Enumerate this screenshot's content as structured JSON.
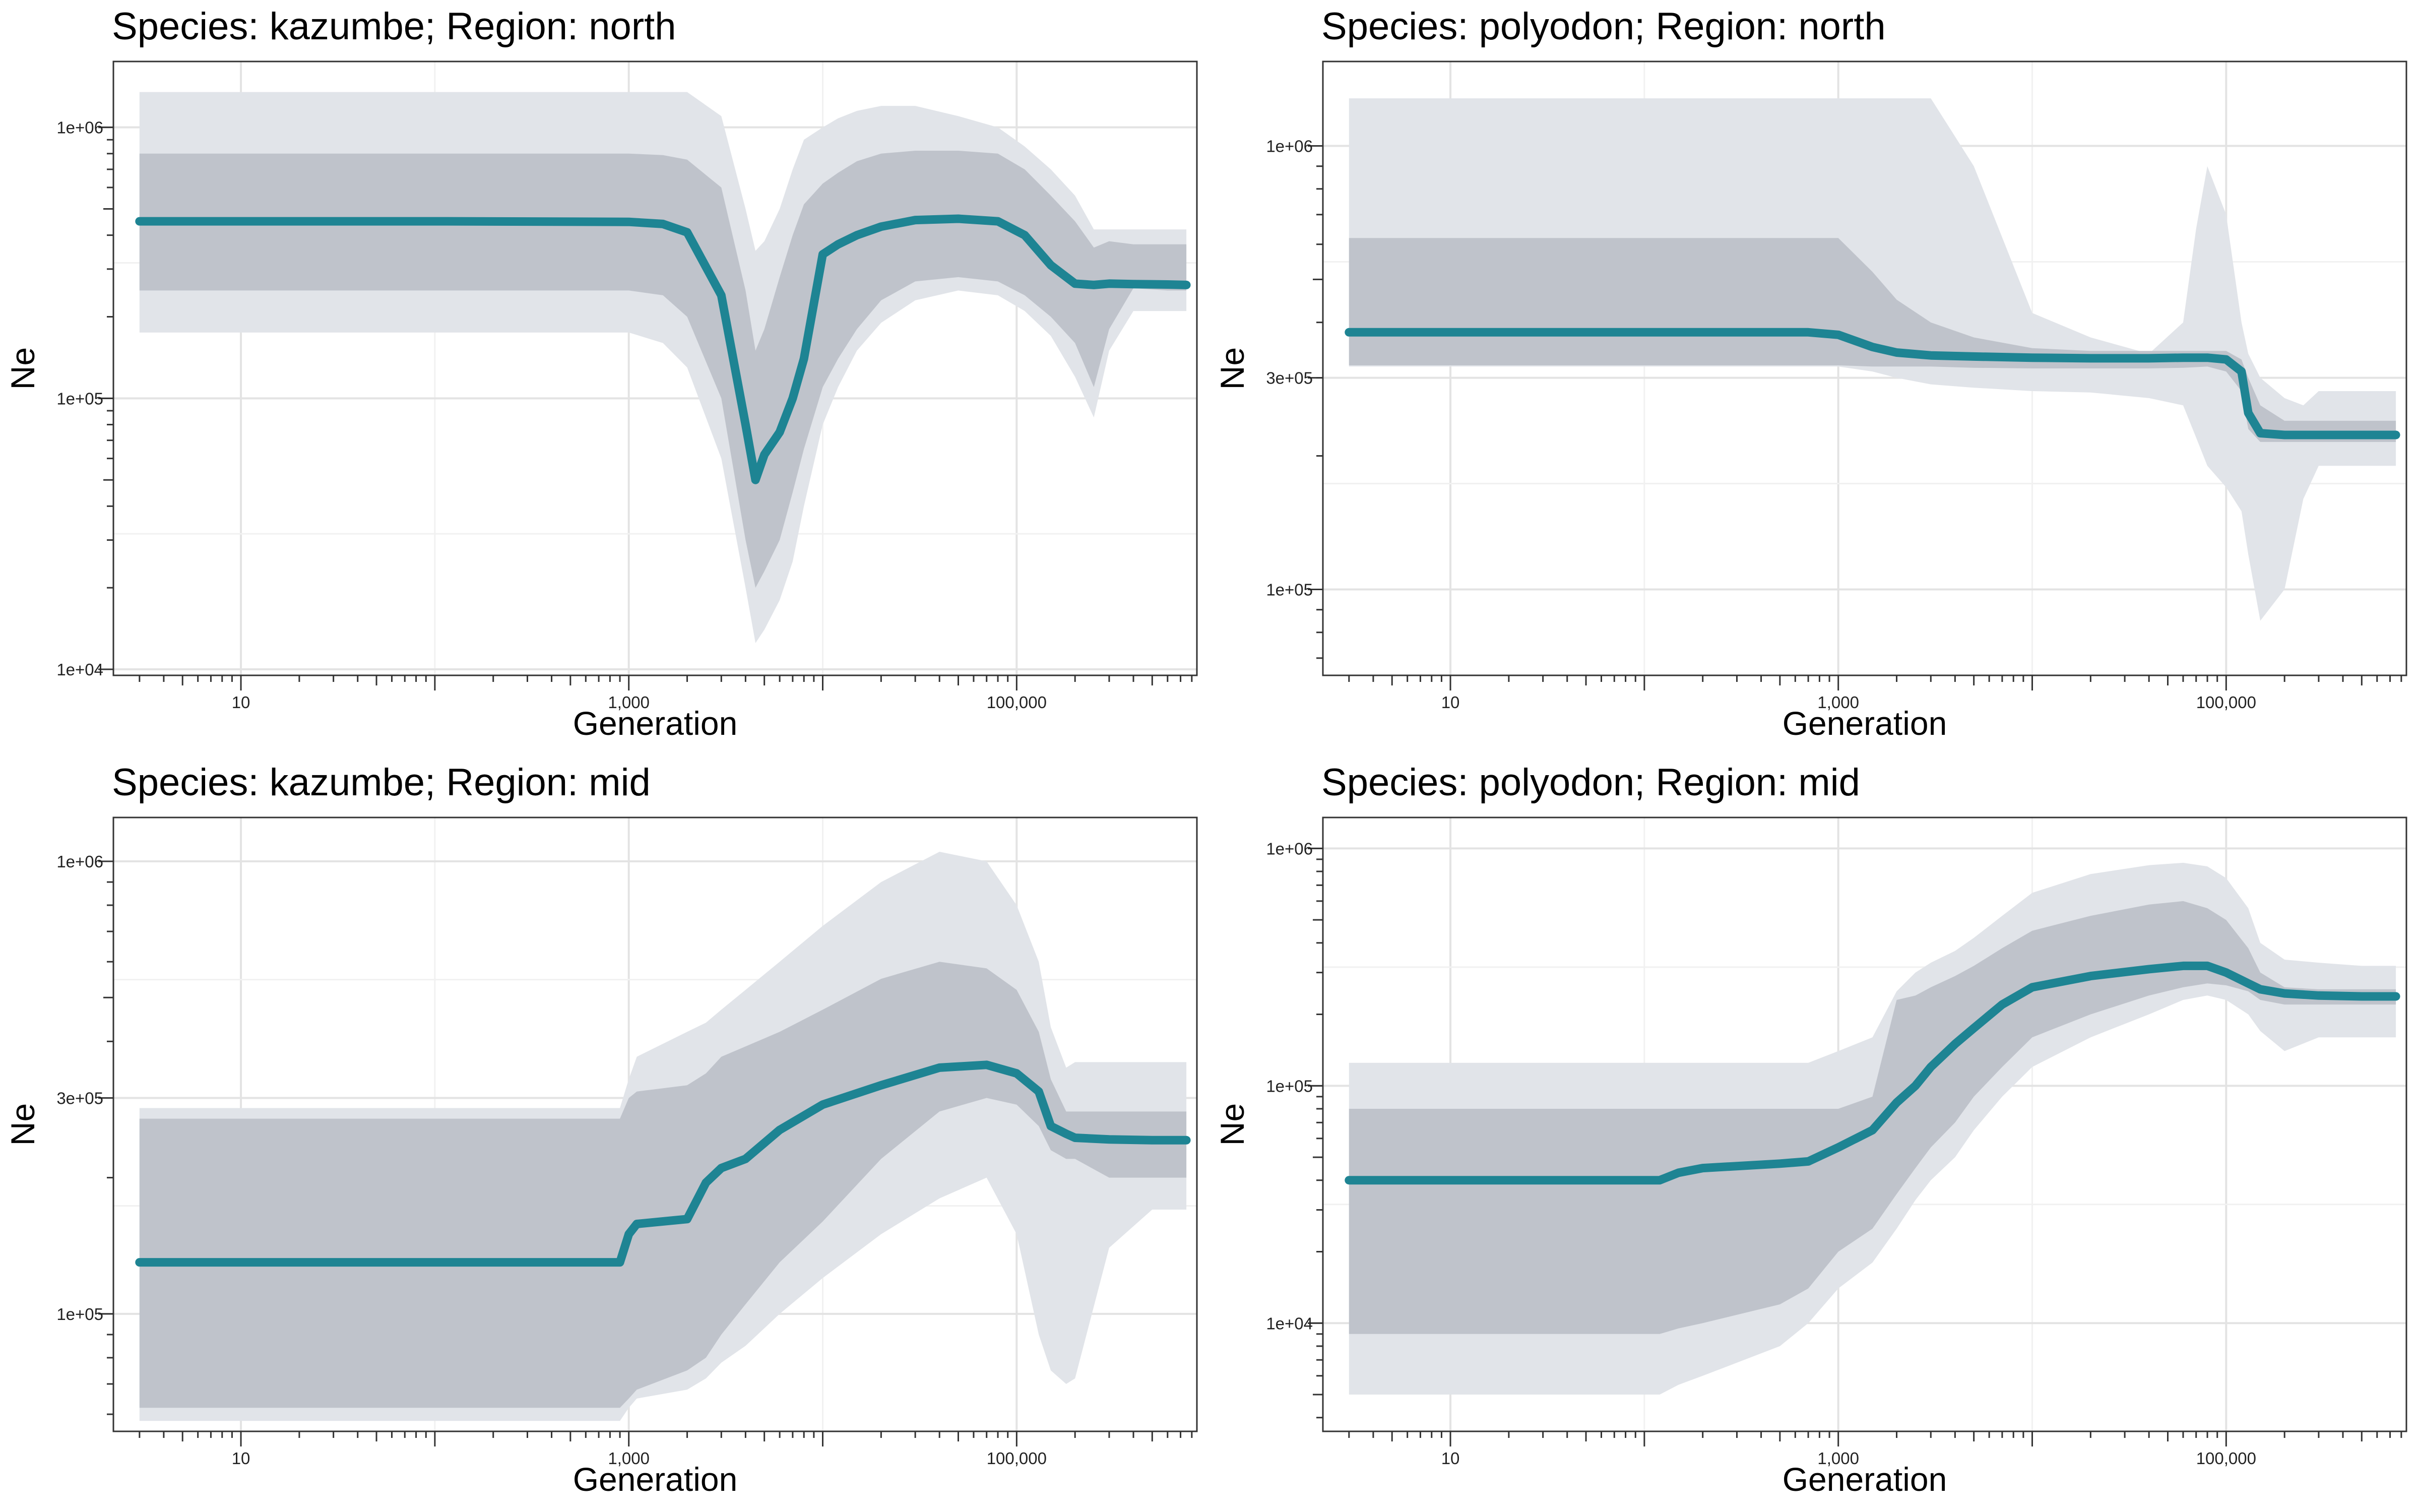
{
  "colors": {
    "line": "#1e8493",
    "inner_band": "#bfc3cb",
    "outer_band": "#e1e4e9",
    "grid_major": "#e3e3e3",
    "grid_minor": "#f1f1f1",
    "border": "#333333"
  },
  "chart_data": [
    {
      "type": "area",
      "title": "Species: kazumbe; Region: north",
      "xlabel": "Generation",
      "ylabel": "Ne",
      "x_scale": "log",
      "y_scale": "log",
      "xlim": [
        2.2,
        850000
      ],
      "ylim": [
        9500,
        1750000
      ],
      "x_ticks": [
        10,
        1000,
        100000
      ],
      "x_tick_labels": [
        "10",
        "1,000",
        "100,000"
      ],
      "y_ticks": [
        10000,
        100000,
        1000000
      ],
      "y_tick_labels": [
        "1e+04",
        "1e+05",
        "1e+06"
      ],
      "grid": true,
      "x": [
        3,
        100,
        1000,
        1500,
        2000,
        3000,
        4000,
        4500,
        5000,
        6000,
        7000,
        8000,
        10000,
        12000,
        15000,
        20000,
        30000,
        50000,
        80000,
        110000,
        150000,
        200000,
        250000,
        300000,
        400000,
        600000,
        750000
      ],
      "median": [
        450000,
        450000,
        448000,
        440000,
        410000,
        240000,
        80000,
        50000,
        62000,
        75000,
        100000,
        140000,
        340000,
        370000,
        400000,
        430000,
        455000,
        460000,
        450000,
        400000,
        310000,
        265000,
        262000,
        265000,
        264000,
        263000,
        262000
      ],
      "inner_lower": [
        250000,
        250000,
        250000,
        240000,
        200000,
        100000,
        30000,
        20000,
        23000,
        30000,
        45000,
        65000,
        110000,
        140000,
        180000,
        230000,
        270000,
        280000,
        270000,
        240000,
        200000,
        160000,
        110000,
        180000,
        255000,
        250000,
        250000
      ],
      "inner_upper": [
        800000,
        800000,
        800000,
        790000,
        760000,
        600000,
        250000,
        150000,
        180000,
        280000,
        400000,
        520000,
        620000,
        680000,
        750000,
        800000,
        820000,
        820000,
        800000,
        700000,
        560000,
        450000,
        360000,
        380000,
        370000,
        370000,
        370000
      ],
      "outer_lower": [
        175000,
        175000,
        175000,
        160000,
        130000,
        60000,
        20000,
        12500,
        14000,
        18000,
        25000,
        40000,
        80000,
        110000,
        150000,
        190000,
        230000,
        250000,
        240000,
        210000,
        170000,
        120000,
        85000,
        150000,
        210000,
        210000,
        210000
      ],
      "outer_upper": [
        1350000,
        1350000,
        1350000,
        1350000,
        1350000,
        1100000,
        500000,
        350000,
        380000,
        500000,
        700000,
        900000,
        1000000,
        1080000,
        1150000,
        1200000,
        1200000,
        1100000,
        1000000,
        850000,
        700000,
        560000,
        420000,
        420000,
        420000,
        420000,
        420000
      ]
    },
    {
      "type": "area",
      "title": "Species: polyodon; Region: north",
      "xlabel": "Generation",
      "ylabel": "Ne",
      "x_scale": "log",
      "y_scale": "log",
      "xlim": [
        2.2,
        850000
      ],
      "ylim": [
        64000,
        1550000
      ],
      "x_ticks": [
        10,
        1000,
        100000
      ],
      "x_tick_labels": [
        "10",
        "1,000",
        "100,000"
      ],
      "y_ticks": [
        100000,
        300000,
        1000000
      ],
      "y_tick_labels": [
        "1e+05",
        "3e+05",
        "1e+06"
      ],
      "grid": true,
      "x": [
        3,
        100,
        700,
        1000,
        1500,
        2000,
        3000,
        5000,
        10000,
        20000,
        40000,
        60000,
        70000,
        80000,
        100000,
        120000,
        130000,
        150000,
        200000,
        250000,
        300000,
        400000,
        600000,
        750000
      ],
      "median": [
        380000,
        380000,
        380000,
        375000,
        352000,
        342000,
        337000,
        335000,
        333000,
        332000,
        332000,
        333000,
        333000,
        333000,
        330000,
        310000,
        250000,
        225000,
        223000,
        223000,
        223000,
        223000,
        223000,
        223000
      ],
      "inner_lower": [
        320000,
        320000,
        320000,
        320000,
        318000,
        318000,
        318000,
        316000,
        315000,
        315000,
        315000,
        316000,
        317000,
        318000,
        310000,
        280000,
        230000,
        215000,
        215000,
        215000,
        215000,
        215000,
        215000,
        215000
      ],
      "inner_upper": [
        620000,
        620000,
        620000,
        620000,
        520000,
        450000,
        400000,
        370000,
        350000,
        345000,
        345000,
        345000,
        345000,
        345000,
        345000,
        330000,
        300000,
        260000,
        240000,
        240000,
        240000,
        240000,
        240000,
        240000
      ],
      "outer_lower": [
        318000,
        318000,
        318000,
        318000,
        310000,
        300000,
        290000,
        285000,
        280000,
        278000,
        270000,
        260000,
        220000,
        190000,
        170000,
        150000,
        120000,
        85000,
        100000,
        160000,
        190000,
        190000,
        190000,
        190000
      ],
      "outer_upper": [
        1280000,
        1280000,
        1280000,
        1280000,
        1280000,
        1280000,
        1280000,
        900000,
        420000,
        370000,
        340000,
        400000,
        650000,
        900000,
        700000,
        400000,
        340000,
        300000,
        270000,
        260000,
        280000,
        280000,
        280000,
        280000
      ]
    },
    {
      "type": "area",
      "title": "Species: kazumbe; Region: mid",
      "xlabel": "Generation",
      "ylabel": "Ne",
      "x_scale": "log",
      "y_scale": "log",
      "xlim": [
        2.2,
        850000
      ],
      "ylim": [
        55000,
        1250000
      ],
      "x_ticks": [
        10,
        1000,
        100000
      ],
      "x_tick_labels": [
        "10",
        "1,000",
        "100,000"
      ],
      "y_ticks": [
        100000,
        300000,
        1000000
      ],
      "y_tick_labels": [
        "1e+05",
        "3e+05",
        "1e+06"
      ],
      "grid": true,
      "x": [
        3,
        100,
        900,
        1000,
        1100,
        2000,
        2500,
        3000,
        4000,
        6000,
        10000,
        20000,
        40000,
        70000,
        100000,
        130000,
        150000,
        180000,
        200000,
        300000,
        500000,
        750000
      ],
      "median": [
        130000,
        130000,
        130000,
        150000,
        158000,
        162000,
        195000,
        210000,
        220000,
        255000,
        290000,
        320000,
        350000,
        355000,
        340000,
        310000,
        260000,
        250000,
        245000,
        243000,
        242000,
        242000
      ],
      "inner_lower": [
        62000,
        62000,
        62000,
        65000,
        68000,
        75000,
        80000,
        90000,
        105000,
        130000,
        160000,
        220000,
        280000,
        300000,
        290000,
        260000,
        230000,
        220000,
        220000,
        200000,
        200000,
        200000
      ],
      "inner_upper": [
        270000,
        270000,
        270000,
        300000,
        310000,
        320000,
        340000,
        370000,
        390000,
        420000,
        470000,
        550000,
        600000,
        580000,
        520000,
        420000,
        330000,
        280000,
        280000,
        280000,
        280000,
        280000
      ],
      "outer_lower": [
        58000,
        58000,
        58000,
        62000,
        65000,
        68000,
        72000,
        78000,
        85000,
        100000,
        120000,
        150000,
        180000,
        200000,
        150000,
        90000,
        75000,
        70000,
        72000,
        140000,
        170000,
        170000
      ],
      "outer_upper": [
        285000,
        285000,
        285000,
        330000,
        370000,
        420000,
        440000,
        470000,
        520000,
        600000,
        720000,
        900000,
        1050000,
        1000000,
        800000,
        600000,
        430000,
        350000,
        360000,
        360000,
        360000,
        360000
      ]
    },
    {
      "type": "area",
      "title": "Species: polyodon; Region: mid",
      "xlabel": "Generation",
      "ylabel": "Ne",
      "x_scale": "log",
      "y_scale": "log",
      "xlim": [
        2.2,
        850000
      ],
      "ylim": [
        3500,
        1350000
      ],
      "x_ticks": [
        10,
        1000,
        100000
      ],
      "x_tick_labels": [
        "10",
        "1,000",
        "100,000"
      ],
      "y_ticks": [
        10000,
        100000,
        1000000
      ],
      "y_tick_labels": [
        "1e+04",
        "1e+05",
        "1e+06"
      ],
      "grid": true,
      "x": [
        3,
        100,
        120,
        150,
        200,
        500,
        700,
        1000,
        1500,
        2000,
        2500,
        3000,
        4000,
        5000,
        7000,
        10000,
        20000,
        40000,
        60000,
        80000,
        100000,
        130000,
        150000,
        200000,
        300000,
        500000,
        750000
      ],
      "median": [
        40000,
        40000,
        40000,
        43000,
        45000,
        47000,
        48000,
        55000,
        65000,
        85000,
        100000,
        120000,
        150000,
        175000,
        220000,
        260000,
        290000,
        310000,
        320000,
        320000,
        300000,
        270000,
        255000,
        245000,
        240000,
        238000,
        238000
      ],
      "inner_lower": [
        9000,
        9000,
        9000,
        9500,
        10000,
        12000,
        14000,
        20000,
        25000,
        35000,
        45000,
        55000,
        70000,
        90000,
        120000,
        160000,
        200000,
        240000,
        260000,
        270000,
        265000,
        250000,
        230000,
        220000,
        220000,
        220000,
        220000
      ],
      "inner_upper": [
        80000,
        80000,
        80000,
        80000,
        80000,
        80000,
        80000,
        80000,
        90000,
        230000,
        240000,
        260000,
        290000,
        320000,
        380000,
        450000,
        520000,
        580000,
        600000,
        560000,
        500000,
        380000,
        300000,
        260000,
        255000,
        255000,
        255000
      ],
      "outer_lower": [
        5000,
        5000,
        5000,
        5500,
        6000,
        8000,
        10000,
        14000,
        18000,
        25000,
        33000,
        40000,
        50000,
        65000,
        90000,
        120000,
        160000,
        200000,
        230000,
        240000,
        230000,
        200000,
        170000,
        140000,
        160000,
        160000,
        160000
      ],
      "outer_upper": [
        125000,
        125000,
        125000,
        125000,
        125000,
        125000,
        125000,
        140000,
        160000,
        250000,
        300000,
        330000,
        370000,
        420000,
        520000,
        650000,
        780000,
        850000,
        870000,
        840000,
        750000,
        560000,
        400000,
        340000,
        330000,
        320000,
        320000
      ]
    }
  ]
}
